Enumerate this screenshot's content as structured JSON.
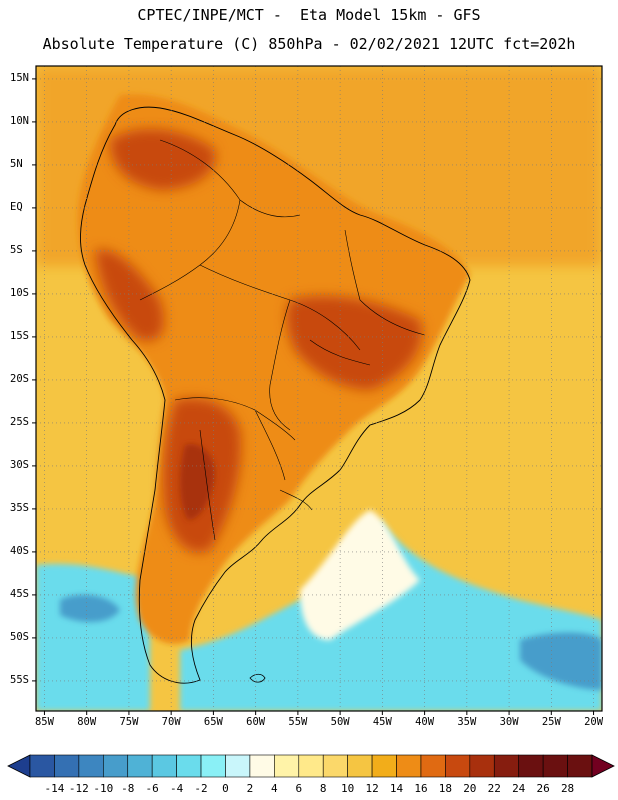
{
  "header": {
    "line1": "CPTEC/INPE/MCT -  Eta Model 15km - GFS",
    "line2": "Absolute Temperature (C) 850hPa - 02/02/2021 12UTC fct=202h"
  },
  "axes": {
    "lat_labels": [
      "15N",
      "10N",
      "5N",
      "EQ",
      "5S",
      "10S",
      "15S",
      "20S",
      "25S",
      "30S",
      "35S",
      "40S",
      "45S",
      "50S",
      "55S"
    ],
    "lon_labels": [
      "85W",
      "80W",
      "75W",
      "70W",
      "65W",
      "60W",
      "55W",
      "50W",
      "45W",
      "40W",
      "35W",
      "30W",
      "25W",
      "20W"
    ]
  },
  "colorbar": {
    "values": [
      "-14",
      "-12",
      "-10",
      "-8",
      "-6",
      "-4",
      "-2",
      "0",
      "2",
      "4",
      "6",
      "8",
      "10",
      "12",
      "14",
      "16",
      "18",
      "20",
      "22",
      "24",
      "26",
      "28"
    ],
    "colors": [
      "#1d3e8e",
      "#2a57a2",
      "#3470b3",
      "#3d86c0",
      "#479dcb",
      "#4fb2d6",
      "#5bc8e2",
      "#6adcec",
      "#8af0f6",
      "#c9f6fb",
      "#fffbe6",
      "#fff3a8",
      "#ffe98a",
      "#fbd86a",
      "#f5c542",
      "#f2ad1a",
      "#ee8c16",
      "#e06a12",
      "#c8490f",
      "#a8300d",
      "#861d0f",
      "#6a1010",
      "#720020"
    ]
  },
  "map": {
    "ocean_base": "#f5c542",
    "land_base": "#ee8c16",
    "hot_core": "#c8490f",
    "cold_ocean": "#6adcec",
    "cool_ocean": "#8af0f6",
    "deep_cold": "#479dcb",
    "pale": "#fffbe6"
  }
}
